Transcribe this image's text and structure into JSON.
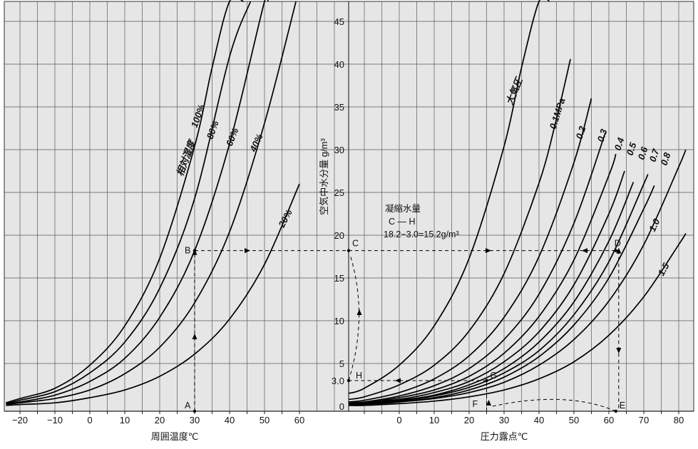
{
  "chart_data": {
    "type": "line",
    "colors": {
      "background": "#e6e6e6",
      "grid": "#595959",
      "curve": "#000000",
      "guide": "#000000"
    },
    "left_panel": {
      "xlabel": "周囲温度℃",
      "x_ticks": [
        "−20",
        "−10",
        "0",
        "10",
        "20",
        "30",
        "40",
        "50",
        "60"
      ],
      "xlim": [
        -24,
        72
      ],
      "family_label": "相対湿度",
      "series": [
        {
          "name": "100%",
          "x": [
            -24,
            -20,
            -10,
            0,
            10,
            20,
            30,
            35,
            40,
            44
          ],
          "y": [
            0.4,
            0.9,
            2.1,
            4.8,
            9.4,
            17.3,
            30.4,
            39.6,
            51.1,
            61.6
          ]
        },
        {
          "name": "80%",
          "x": [
            -24,
            -20,
            -10,
            0,
            10,
            20,
            30,
            40,
            46
          ],
          "y": [
            0.3,
            0.7,
            1.7,
            3.9,
            7.5,
            13.8,
            24.3,
            40.9,
            53.8
          ]
        },
        {
          "name": "60%",
          "x": [
            -24,
            -20,
            -10,
            0,
            10,
            20,
            30,
            40,
            50,
            51
          ],
          "y": [
            0.3,
            0.5,
            1.3,
            2.9,
            5.6,
            10.4,
            18.2,
            30.7,
            49.7,
            51.6
          ]
        },
        {
          "name": "40%",
          "x": [
            -24,
            -20,
            -10,
            0,
            10,
            20,
            30,
            40,
            50,
            59
          ],
          "y": [
            0.2,
            0.4,
            0.9,
            1.9,
            3.8,
            6.9,
            12.1,
            20.4,
            33.1,
            51.5
          ]
        },
        {
          "name": "20%",
          "x": [
            -24,
            -20,
            -10,
            0,
            10,
            20,
            30,
            40,
            50,
            60
          ],
          "y": [
            0.1,
            0.2,
            0.4,
            1.0,
            1.9,
            3.5,
            6.1,
            10.2,
            16.6,
            26.0
          ]
        }
      ]
    },
    "center_axis": {
      "ylabel": "空気中水分量 g/m³",
      "y_ticks": [
        0,
        5,
        10,
        15,
        20,
        25,
        30,
        35,
        40,
        45
      ],
      "ylim": [
        -1,
        46.5
      ],
      "extra_tick_label": "3.0"
    },
    "right_panel": {
      "xlabel": "圧力露点℃",
      "x_ticks": [
        "0",
        "10",
        "20",
        "30",
        "40",
        "50",
        "60",
        "70",
        "80"
      ],
      "xlim": [
        -14.5,
        82
      ],
      "family_label": "大気圧",
      "curve_labels": [
        "0.1MPa",
        "0.2",
        "0.3",
        "0.4",
        "0.5",
        "0.6",
        "0.7",
        "0.8",
        "1.0",
        "1.5"
      ],
      "series": [
        {
          "name": "大気圧",
          "x": [
            -14.5,
            -10,
            0,
            10,
            20,
            30,
            35,
            40,
            43
          ],
          "y": [
            1.5,
            2.1,
            4.8,
            9.4,
            17.3,
            30.4,
            39.6,
            51.1,
            58.5
          ]
        },
        {
          "name": "0.1MPa",
          "x": [
            -14.5,
            -10,
            0,
            10,
            20,
            30,
            40,
            45,
            49
          ],
          "y": [
            0.8,
            1.1,
            2.5,
            4.8,
            8.8,
            15.5,
            26.1,
            33.6,
            40.6
          ]
        },
        {
          "name": "0.2",
          "x": [
            -14.5,
            -10,
            0,
            10,
            20,
            30,
            40,
            50,
            55
          ],
          "y": [
            0.5,
            0.7,
            1.6,
            3.2,
            5.9,
            10.4,
            17.5,
            28.5,
            36.0
          ]
        },
        {
          "name": "0.3",
          "x": [
            -14.5,
            -10,
            0,
            10,
            20,
            30,
            40,
            50,
            59
          ],
          "y": [
            0.4,
            0.5,
            1.2,
            2.4,
            4.4,
            7.8,
            13.1,
            21.4,
            32.0
          ]
        },
        {
          "name": "0.4",
          "x": [
            -14.5,
            -10,
            0,
            10,
            20,
            30,
            40,
            50,
            60,
            62
          ],
          "y": [
            0.3,
            0.4,
            1.0,
            1.9,
            3.5,
            6.2,
            10.5,
            17.1,
            27.0,
            29.5
          ]
        },
        {
          "name": "0.5",
          "x": [
            -14.5,
            -10,
            0,
            10,
            20,
            30,
            40,
            50,
            60,
            64.5
          ],
          "y": [
            0.3,
            0.4,
            0.8,
            1.6,
            2.9,
            5.2,
            8.7,
            14.2,
            22.5,
            27.5
          ]
        },
        {
          "name": "0.6",
          "x": [
            -14.5,
            -10,
            0,
            10,
            20,
            30,
            40,
            50,
            60,
            67
          ],
          "y": [
            0.2,
            0.3,
            0.7,
            1.3,
            2.5,
            4.4,
            7.5,
            12.2,
            19.3,
            26.2
          ]
        },
        {
          "name": "0.7",
          "x": [
            -14.5,
            -10,
            0,
            10,
            20,
            30,
            40,
            50,
            60,
            70,
            71
          ],
          "y": [
            0.2,
            0.3,
            0.6,
            1.2,
            2.2,
            3.9,
            6.5,
            10.7,
            16.9,
            26.0,
            27.0
          ]
        },
        {
          "name": "0.8",
          "x": [
            -14.5,
            -10,
            0,
            10,
            20,
            30,
            40,
            50,
            60,
            70,
            73
          ],
          "y": [
            0.2,
            0.2,
            0.5,
            1.0,
            1.9,
            3.4,
            5.8,
            9.5,
            15.0,
            23.1,
            25.8
          ]
        },
        {
          "name": "1.0",
          "x": [
            -14.5,
            -10,
            0,
            10,
            20,
            30,
            40,
            50,
            60,
            70,
            80,
            82
          ],
          "y": [
            0.2,
            0.2,
            0.5,
            0.9,
            1.6,
            2.8,
            4.8,
            7.8,
            12.3,
            18.9,
            28.0,
            30.0
          ]
        },
        {
          "name": "1.5",
          "x": [
            -14.5,
            -10,
            0,
            10,
            20,
            30,
            40,
            50,
            60,
            70,
            80,
            82
          ],
          "y": [
            0.1,
            0.1,
            0.3,
            0.6,
            1.1,
            1.9,
            3.2,
            5.2,
            8.3,
            12.8,
            18.9,
            20.2
          ]
        }
      ]
    },
    "annotations": {
      "points": [
        {
          "label": "A",
          "panel": "left",
          "x": 30,
          "y": 0
        },
        {
          "label": "B",
          "panel": "left",
          "x": 30,
          "y": 18.2
        },
        {
          "label": "C",
          "panel": "axis",
          "x": 0,
          "y": 18.2
        },
        {
          "label": "D",
          "panel": "right",
          "x": 62,
          "y": 18.2
        },
        {
          "label": "E",
          "panel": "right",
          "x": 62,
          "y": 0
        },
        {
          "label": "F",
          "panel": "right",
          "x": 25,
          "y": 0
        },
        {
          "label": "G",
          "panel": "right",
          "x": 25,
          "y": 3.0
        },
        {
          "label": "H",
          "panel": "axis",
          "x": 0,
          "y": 3.0
        }
      ],
      "condensation_title": "凝縮水量",
      "condensation_line2": "C — H",
      "condensation_formula": "18.2−3.0=15.2g/m³"
    }
  }
}
